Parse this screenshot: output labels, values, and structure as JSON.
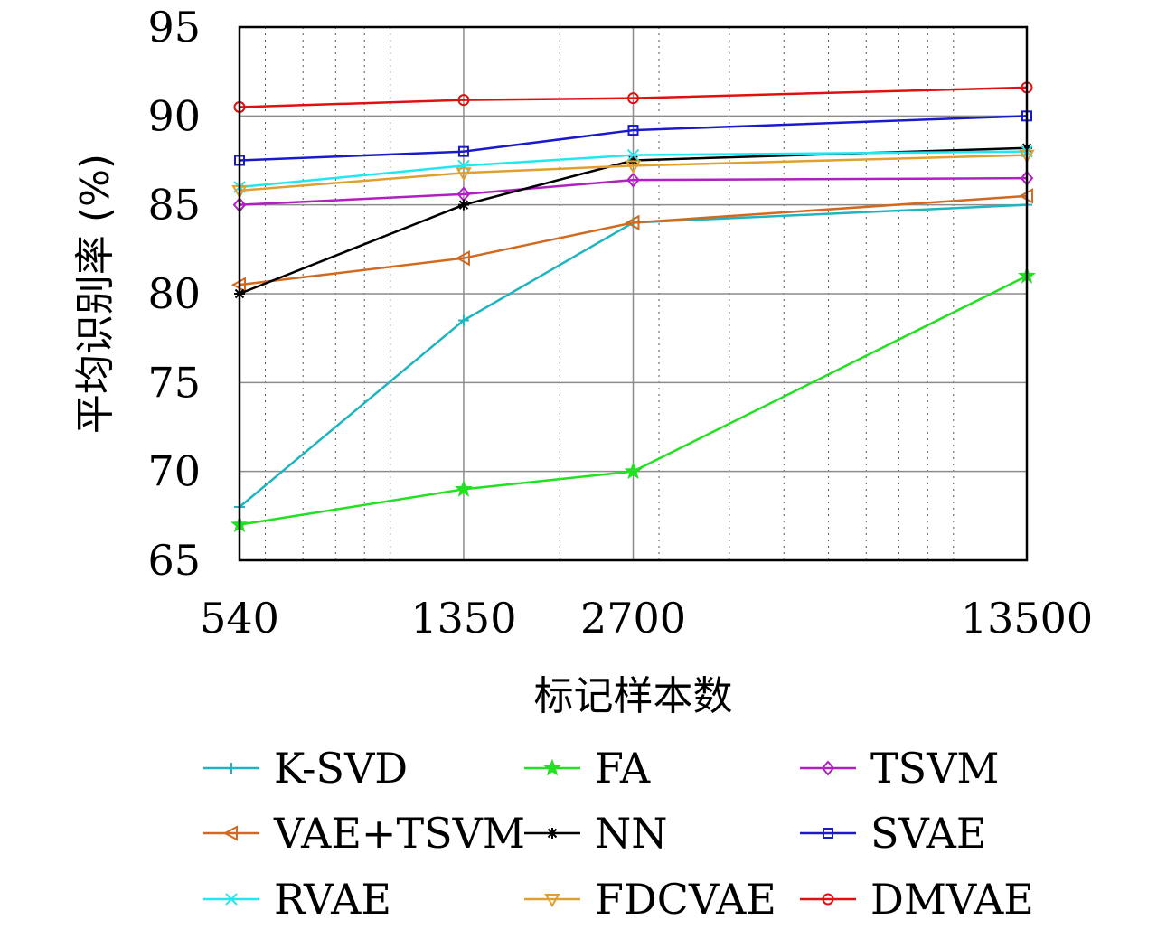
{
  "chart_data": {
    "type": "line",
    "title": "",
    "xlabel": "标记样本数",
    "ylabel": "平均识别率 (%)",
    "x_scale": "log",
    "xlim": [
      540,
      13500
    ],
    "ylim": [
      65,
      95
    ],
    "x_ticks": [
      540,
      1350,
      2700,
      13500
    ],
    "y_ticks": [
      65,
      70,
      75,
      80,
      85,
      90,
      95
    ],
    "grid": true,
    "legend_position": "bottom",
    "x": [
      540,
      1350,
      2700,
      13500
    ],
    "series": [
      {
        "name": "K-SVD",
        "color": "#1fb5c0",
        "marker": "plus",
        "values": [
          68.0,
          78.5,
          84.0,
          85.0
        ]
      },
      {
        "name": "FA",
        "color": "#22e022",
        "marker": "star",
        "values": [
          67.0,
          69.0,
          70.0,
          81.0
        ]
      },
      {
        "name": "TSVM",
        "color": "#b01fc0",
        "marker": "diamond",
        "values": [
          85.0,
          85.6,
          86.4,
          86.5
        ]
      },
      {
        "name": "VAE+TSVM",
        "color": "#d2691e",
        "marker": "triangle-left",
        "values": [
          80.5,
          82.0,
          84.0,
          85.5
        ]
      },
      {
        "name": "NN",
        "color": "#000000",
        "marker": "asterisk",
        "values": [
          80.0,
          85.0,
          87.5,
          88.2
        ]
      },
      {
        "name": "SVAE",
        "color": "#1a1acc",
        "marker": "square",
        "values": [
          87.5,
          88.0,
          89.2,
          90.0
        ]
      },
      {
        "name": "RVAE",
        "color": "#22e6f0",
        "marker": "x",
        "values": [
          86.0,
          87.2,
          87.8,
          88.0
        ]
      },
      {
        "name": "FDCVAE",
        "color": "#e0a030",
        "marker": "triangle-down",
        "values": [
          85.8,
          86.8,
          87.2,
          87.8
        ]
      },
      {
        "name": "DMVAE",
        "color": "#e01010",
        "marker": "circle",
        "values": [
          90.5,
          90.9,
          91.0,
          91.6
        ]
      }
    ]
  }
}
